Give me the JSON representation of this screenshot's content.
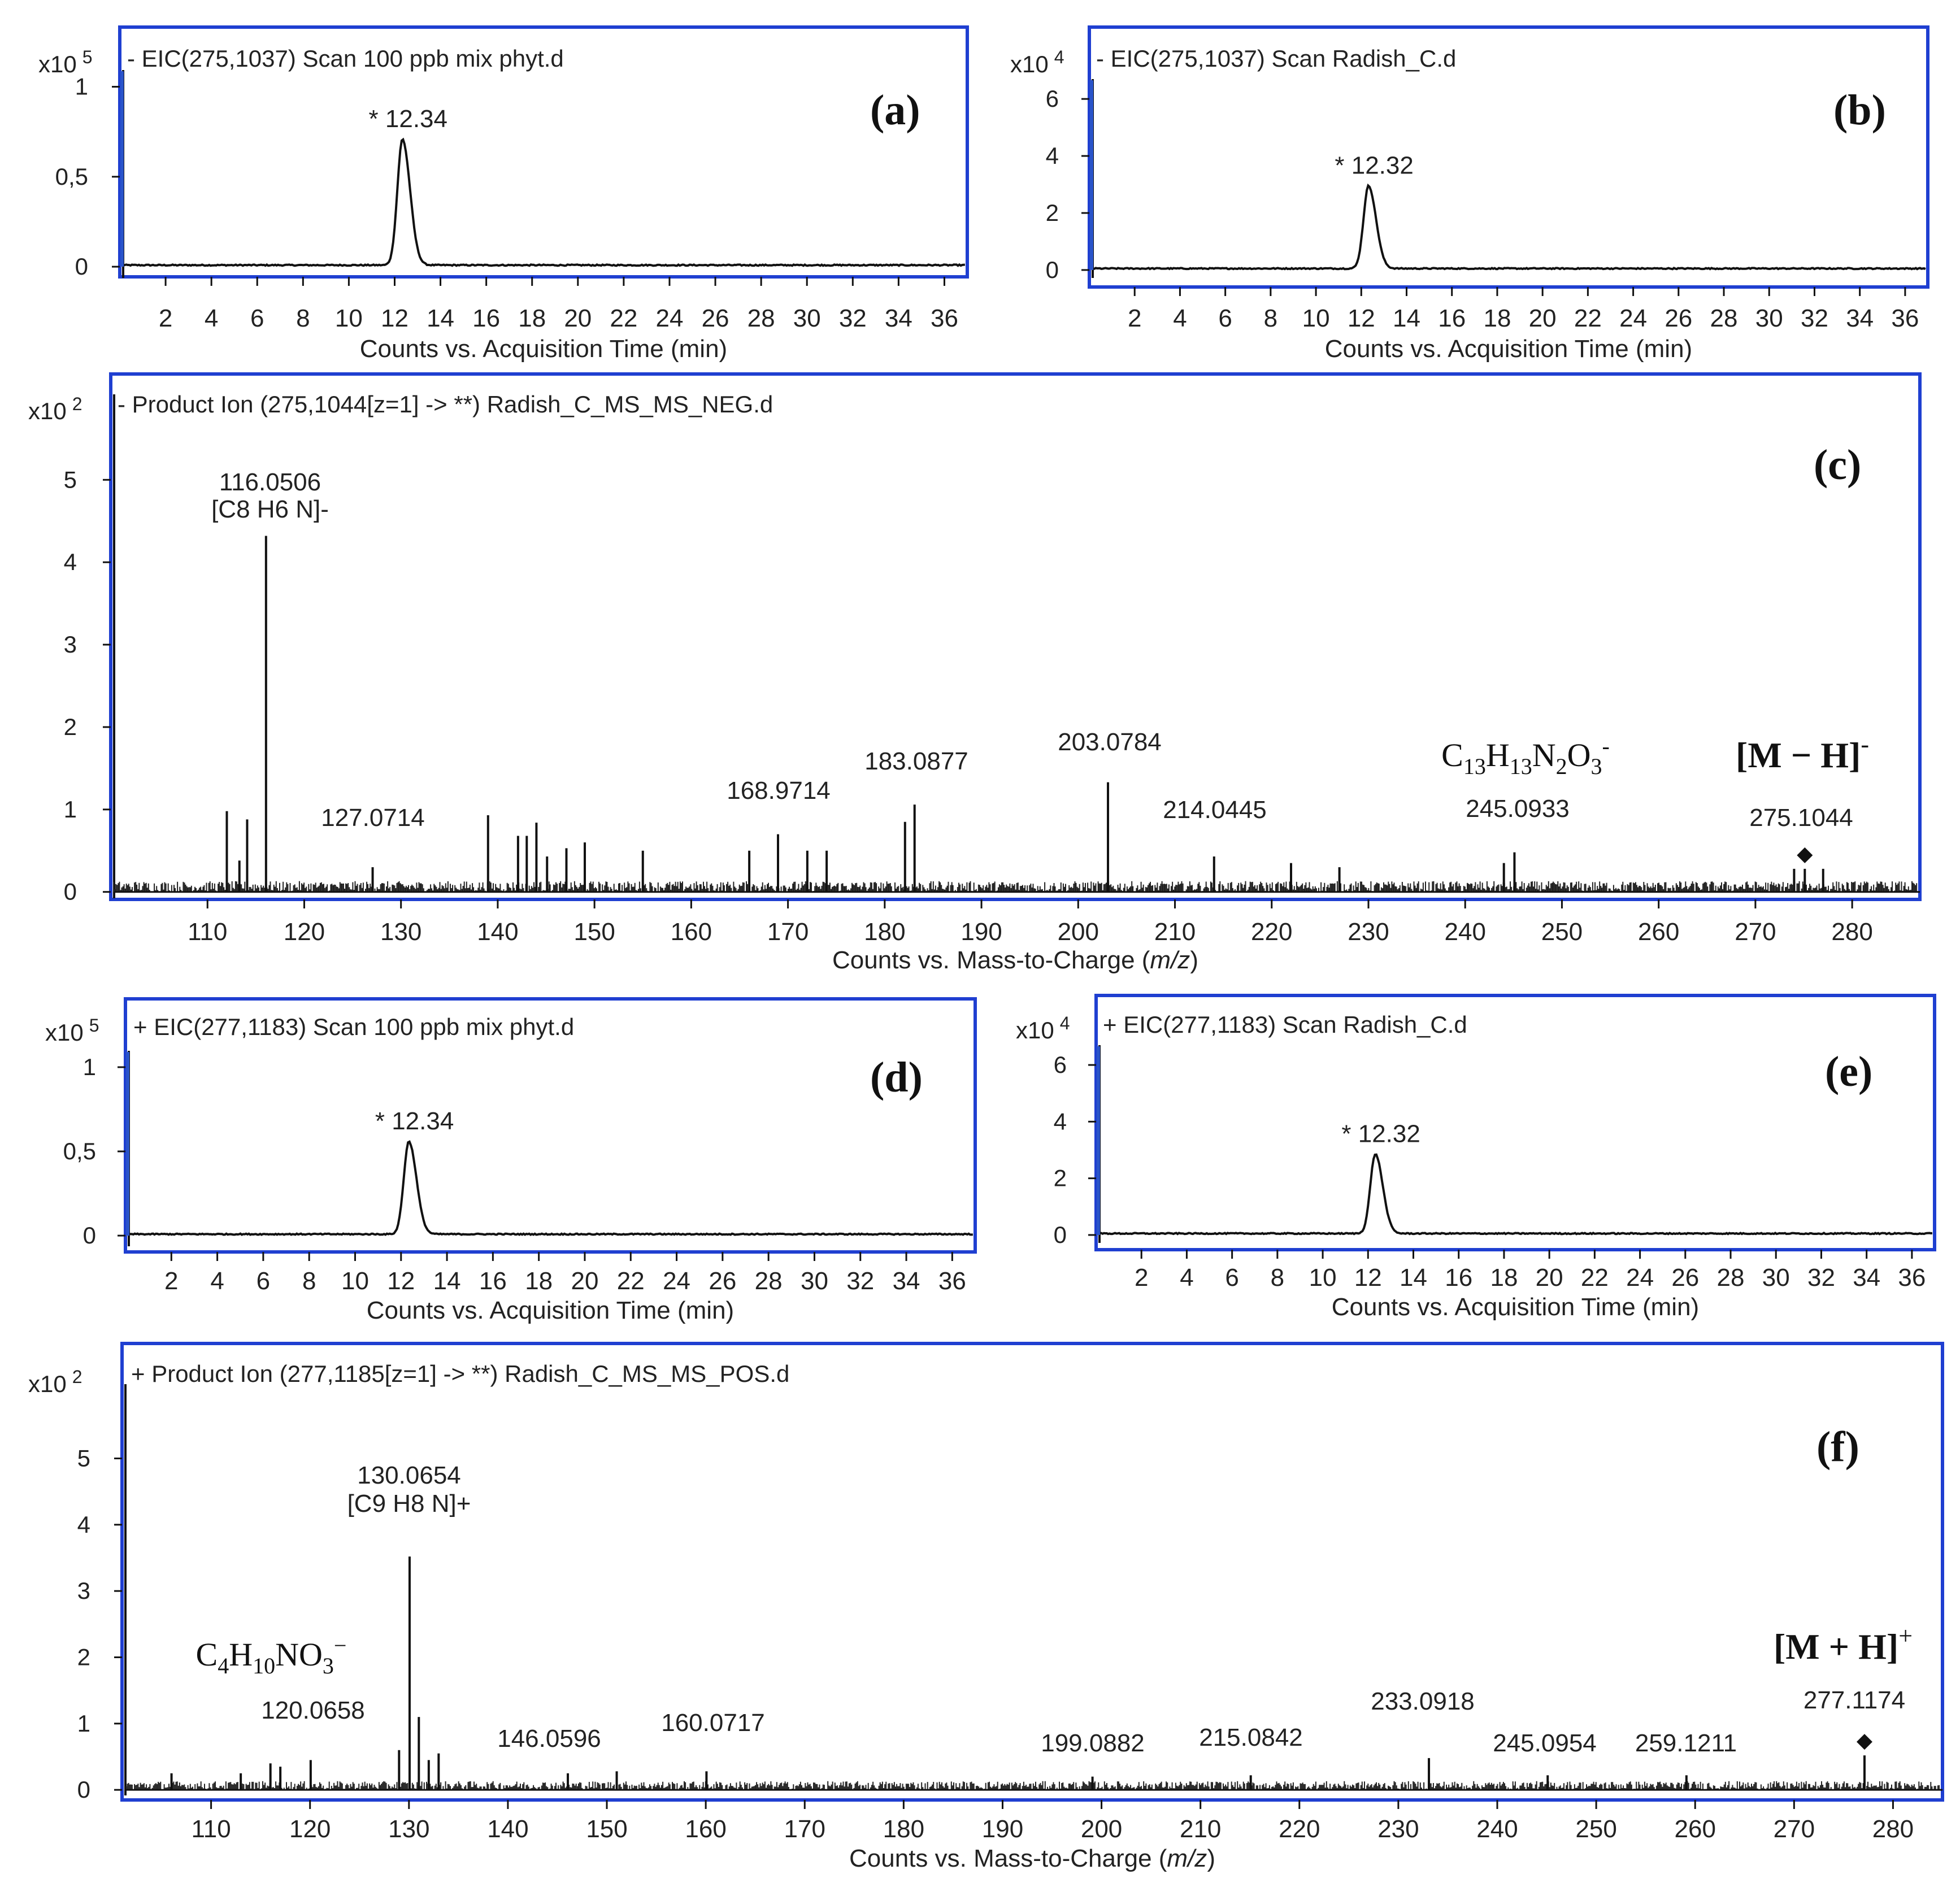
{
  "colors": {
    "frame": "#1f3fd1",
    "trace": "#111111",
    "text": "#222222"
  },
  "chart_data": [
    {
      "id": "a",
      "type": "line",
      "panel_label": "(a)",
      "title": "- EIC(275,1037) Scan 100 ppb mix phyt.d",
      "multiplier": "x10",
      "exponent": "5",
      "xlabel": "Counts vs. Acquisition Time (min)",
      "xlim": [
        0,
        37
      ],
      "ylim": [
        -0.05,
        1.03
      ],
      "xticks": [
        2,
        4,
        6,
        8,
        10,
        12,
        14,
        16,
        18,
        20,
        22,
        24,
        26,
        28,
        30,
        32,
        34,
        36
      ],
      "yticks": [
        0,
        0.5,
        1
      ],
      "ytick_labels": [
        "0",
        "0,5",
        "1"
      ],
      "peaks": [
        {
          "x": 12.34,
          "y": 0.7,
          "label": "* 12.34"
        }
      ]
    },
    {
      "id": "b",
      "type": "line",
      "panel_label": "(b)",
      "title": "- EIC(275,1037) Scan Radish_C.d",
      "multiplier": "x10",
      "exponent": "4",
      "xlabel": "Counts vs. Acquisition Time (min)",
      "xlim": [
        0,
        37
      ],
      "ylim": [
        -0.2,
        6.3
      ],
      "xticks": [
        2,
        4,
        6,
        8,
        10,
        12,
        14,
        16,
        18,
        20,
        22,
        24,
        26,
        28,
        30,
        32,
        34,
        36
      ],
      "yticks": [
        0,
        2,
        4,
        6
      ],
      "ytick_labels": [
        "0",
        "2",
        "4",
        "6"
      ],
      "peaks": [
        {
          "x": 12.32,
          "y": 2.9,
          "label": "* 12.32"
        }
      ]
    },
    {
      "id": "c",
      "type": "bar",
      "panel_label": "(c)",
      "title": "- Product Ion (275,1044[z=1] -> **) Radish_C_MS_MS_NEG.d",
      "multiplier": "x10",
      "exponent": "2",
      "xlabel_pre": "Counts vs. Mass-to-Charge (",
      "xlabel_it": "m/z",
      "xlabel_post": ")",
      "xlim": [
        100,
        287
      ],
      "ylim": [
        -0.05,
        5.9
      ],
      "xticks": [
        110,
        120,
        130,
        140,
        150,
        160,
        170,
        180,
        190,
        200,
        210,
        220,
        230,
        240,
        250,
        260,
        270,
        280
      ],
      "yticks": [
        0,
        1,
        2,
        3,
        4,
        5
      ],
      "ytick_labels": [
        "0",
        "1",
        "2",
        "3",
        "4",
        "5"
      ],
      "peaks": [
        {
          "mz": 112.0,
          "y": 0.98
        },
        {
          "mz": 113.3,
          "y": 0.38
        },
        {
          "mz": 114.1,
          "y": 0.88
        },
        {
          "mz": 116.0506,
          "y": 4.32,
          "label": "116.0506",
          "sublabel": "[C8 H6 N]-"
        },
        {
          "mz": 127.0714,
          "y": 0.3,
          "label": "127.0714"
        },
        {
          "mz": 139.0,
          "y": 0.93
        },
        {
          "mz": 142.1,
          "y": 0.68
        },
        {
          "mz": 143.0,
          "y": 0.68
        },
        {
          "mz": 144.0,
          "y": 0.84
        },
        {
          "mz": 145.1,
          "y": 0.43
        },
        {
          "mz": 147.1,
          "y": 0.53
        },
        {
          "mz": 149.0,
          "y": 0.6
        },
        {
          "mz": 155.0,
          "y": 0.5
        },
        {
          "mz": 166.0,
          "y": 0.5
        },
        {
          "mz": 168.9714,
          "y": 0.7,
          "label": "168.9714"
        },
        {
          "mz": 172.0,
          "y": 0.5
        },
        {
          "mz": 174.0,
          "y": 0.5
        },
        {
          "mz": 182.1,
          "y": 0.85
        },
        {
          "mz": 183.0877,
          "y": 1.06,
          "label": "183.0877"
        },
        {
          "mz": 203.0784,
          "y": 1.33,
          "label": "203.0784"
        },
        {
          "mz": 214.0445,
          "y": 0.43,
          "label": "214.0445"
        },
        {
          "mz": 222.0,
          "y": 0.35
        },
        {
          "mz": 227.0,
          "y": 0.3
        },
        {
          "mz": 244.0,
          "y": 0.35
        },
        {
          "mz": 245.0933,
          "y": 0.48,
          "label": "245.0933",
          "formula": {
            "base": [
              "C",
              "H",
              "N",
              "O"
            ],
            "sub": [
              "13",
              "13",
              "2",
              "3"
            ],
            "sup": "-"
          }
        },
        {
          "mz": 274.0,
          "y": 0.28
        },
        {
          "mz": 275.1044,
          "y": 0.28,
          "label": "275.1044",
          "precursor": true
        },
        {
          "mz": 277.0,
          "y": 0.28
        }
      ],
      "ion_label": {
        "text": "[M − H]",
        "sup": "-"
      }
    },
    {
      "id": "d",
      "type": "line",
      "panel_label": "(d)",
      "title": "+ EIC(277,1183) Scan 100 ppb mix phyt.d",
      "multiplier": "x10",
      "exponent": "5",
      "xlabel": "Counts vs. Acquisition Time (min)",
      "xlim": [
        0,
        37
      ],
      "ylim": [
        -0.05,
        1.03
      ],
      "xticks": [
        2,
        4,
        6,
        8,
        10,
        12,
        14,
        16,
        18,
        20,
        22,
        24,
        26,
        28,
        30,
        32,
        34,
        36
      ],
      "yticks": [
        0,
        0.5,
        1
      ],
      "ytick_labels": [
        "0",
        "0,5",
        "1"
      ],
      "peaks": [
        {
          "x": 12.34,
          "y": 0.55,
          "label": "* 12.34"
        }
      ]
    },
    {
      "id": "e",
      "type": "line",
      "panel_label": "(e)",
      "title": "+ EIC(277,1183) Scan Radish_C.d",
      "multiplier": "x10",
      "exponent": "4",
      "xlabel": "Counts vs. Acquisition Time (min)",
      "xlim": [
        0,
        37
      ],
      "ylim": [
        -0.2,
        6.3
      ],
      "xticks": [
        2,
        4,
        6,
        8,
        10,
        12,
        14,
        16,
        18,
        20,
        22,
        24,
        26,
        28,
        30,
        32,
        34,
        36
      ],
      "yticks": [
        0,
        2,
        4,
        6
      ],
      "ytick_labels": [
        "0",
        "2",
        "4",
        "6"
      ],
      "peaks": [
        {
          "x": 12.32,
          "y": 2.8,
          "label": "* 12.32"
        }
      ]
    },
    {
      "id": "f",
      "type": "bar",
      "panel_label": "(f)",
      "title": "+ Product Ion (277,1185[z=1] -> **) Radish_C_MS_MS_POS.d",
      "multiplier": "x10",
      "exponent": "2",
      "xlabel_pre": "Counts vs. Mass-to-Charge (",
      "xlabel_it": "m/z",
      "xlabel_post": ")",
      "xlim": [
        101,
        285
      ],
      "ylim": [
        -0.05,
        5.95
      ],
      "xticks": [
        110,
        120,
        130,
        140,
        150,
        160,
        170,
        180,
        190,
        200,
        210,
        220,
        230,
        240,
        250,
        260,
        270,
        280
      ],
      "yticks": [
        0,
        1,
        2,
        3,
        4,
        5
      ],
      "ytick_labels": [
        "0",
        "1",
        "2",
        "3",
        "4",
        "5"
      ],
      "peaks": [
        {
          "mz": 106.0,
          "y": 0.25
        },
        {
          "mz": 113.0,
          "y": 0.25
        },
        {
          "mz": 116.0,
          "y": 0.4
        },
        {
          "mz": 117.0,
          "y": 0.35
        },
        {
          "mz": 120.0658,
          "y": 0.45,
          "label": "120.0658",
          "formula": {
            "base": [
              "C",
              "H",
              "NO"
            ],
            "sub": [
              "4",
              "10",
              "3"
            ],
            "sup": "−"
          }
        },
        {
          "mz": 129.0,
          "y": 0.6
        },
        {
          "mz": 130.0654,
          "y": 3.52,
          "label": "130.0654",
          "sublabel": "[C9 H8 N]+"
        },
        {
          "mz": 131.0,
          "y": 1.1
        },
        {
          "mz": 132.0,
          "y": 0.45
        },
        {
          "mz": 133.0,
          "y": 0.55
        },
        {
          "mz": 146.0596,
          "y": 0.25,
          "label": "146.0596"
        },
        {
          "mz": 151.0,
          "y": 0.28
        },
        {
          "mz": 160.0717,
          "y": 0.28,
          "label": "160.0717"
        },
        {
          "mz": 199.0882,
          "y": 0.2,
          "label": "199.0882"
        },
        {
          "mz": 215.0842,
          "y": 0.22,
          "label": "215.0842"
        },
        {
          "mz": 233.0918,
          "y": 0.48,
          "label": "233.0918"
        },
        {
          "mz": 245.0954,
          "y": 0.22,
          "label": "245.0954"
        },
        {
          "mz": 259.1211,
          "y": 0.22,
          "label": "259.1211"
        },
        {
          "mz": 277.1174,
          "y": 0.52,
          "label": "277.1174",
          "precursor": true
        }
      ],
      "ion_label": {
        "text": "[M + H]",
        "sup": "+"
      }
    }
  ]
}
